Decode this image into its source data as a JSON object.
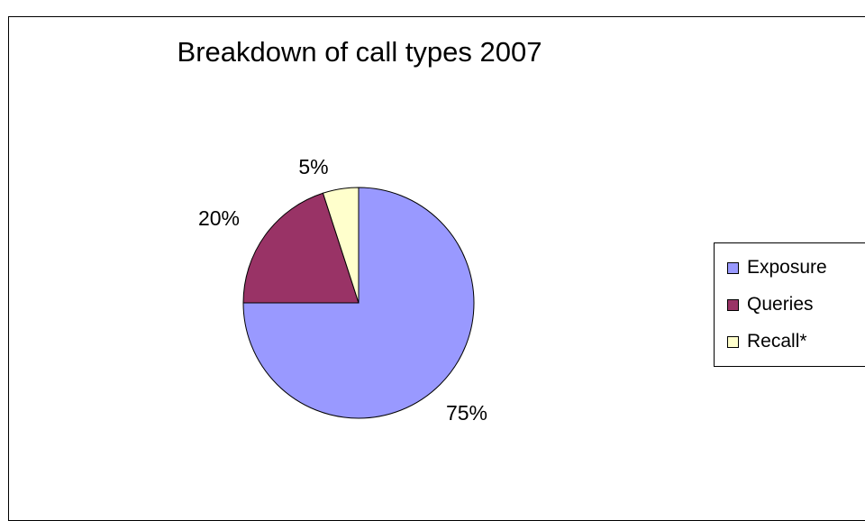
{
  "chart_data": {
    "type": "pie",
    "title": "Breakdown of call types 2007",
    "categories": [
      "Exposure",
      "Queries",
      "Recall*"
    ],
    "values": [
      75,
      20,
      5
    ],
    "data_labels": [
      "75%",
      "20%",
      "5%"
    ],
    "colors": [
      "#9999ff",
      "#993366",
      "#ffffcc"
    ],
    "legend_position": "right"
  }
}
